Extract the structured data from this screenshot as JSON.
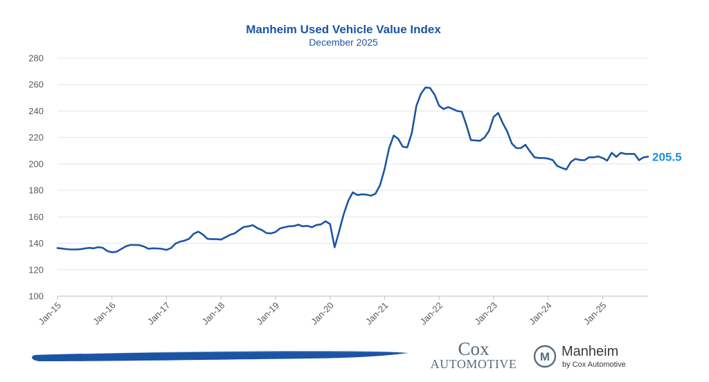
{
  "colors": {
    "line": "#1c54a5",
    "title": "#1c54a5",
    "end_label": "#1f8ede",
    "grid": "#e4e4e4",
    "tick": "#595959",
    "brush": "#1c54a5",
    "logo_gray": "#5a6b7b"
  },
  "chart_data": {
    "type": "line",
    "title": "Manheim Used Vehicle Value Index",
    "subtitle": "December 2025",
    "xlabel": "",
    "ylabel": "",
    "ylim": [
      100,
      280
    ],
    "yticks": [
      100,
      120,
      140,
      160,
      180,
      200,
      220,
      240,
      260,
      280
    ],
    "grid": true,
    "x_tick_labels": [
      "Jan-15",
      "Jan-16",
      "Jan-17",
      "Jan-18",
      "Jan-19",
      "Jan-20",
      "Jan-21",
      "Jan-22",
      "Jan-23",
      "Jan-24",
      "Jan-25"
    ],
    "x_start": "Jan-15",
    "x_end": "Dec-25",
    "end_value_label": "205.5",
    "series": [
      {
        "values": [
          136.4,
          136.0,
          135.6,
          135.3,
          135.3,
          135.5,
          136.1,
          136.5,
          136.2,
          137.1,
          136.5,
          134.1,
          133.2,
          133.6,
          135.6,
          137.6,
          138.7,
          138.7,
          138.6,
          137.6,
          135.9,
          136.2,
          136.1,
          135.8,
          135.0,
          136.4,
          139.8,
          141.3,
          142.0,
          143.5,
          147.2,
          148.8,
          146.6,
          143.4,
          143.1,
          143.1,
          142.8,
          144.6,
          146.4,
          147.5,
          150.0,
          152.3,
          152.8,
          153.7,
          151.5,
          150.0,
          147.7,
          147.5,
          148.5,
          151.3,
          152.1,
          152.9,
          153.0,
          154.1,
          152.8,
          153.2,
          152.1,
          153.8,
          154.3,
          156.6,
          154.6,
          137.0,
          149.0,
          162.0,
          172.0,
          178.5,
          176.5,
          177.0,
          176.8,
          176.0,
          177.5,
          184.0,
          196.0,
          212.0,
          221.5,
          219.0,
          213.0,
          212.5,
          223.5,
          244.0,
          253.0,
          257.8,
          257.5,
          252.5,
          244.0,
          241.5,
          243.0,
          241.5,
          240.0,
          239.5,
          229.5,
          218.0,
          217.8,
          217.5,
          220.0,
          225.0,
          235.5,
          238.5,
          231.0,
          224.5,
          215.5,
          212.0,
          212.0,
          214.5,
          209.5,
          205.0,
          204.5,
          204.5,
          204.0,
          203.0,
          198.5,
          197.0,
          195.8,
          201.5,
          203.8,
          203.0,
          202.8,
          205.0,
          205.0,
          205.7,
          204.5,
          202.5,
          208.4,
          205.4,
          208.4,
          207.6,
          207.6,
          207.6,
          202.8,
          205.0,
          205.5
        ]
      }
    ]
  },
  "footer": {
    "cox_logo_line1": "Cox",
    "cox_logo_line2": "Automotive",
    "manheim_name": "Manheim",
    "manheim_sub": "by Cox Automotive",
    "manheim_emblem_letter": "M"
  }
}
